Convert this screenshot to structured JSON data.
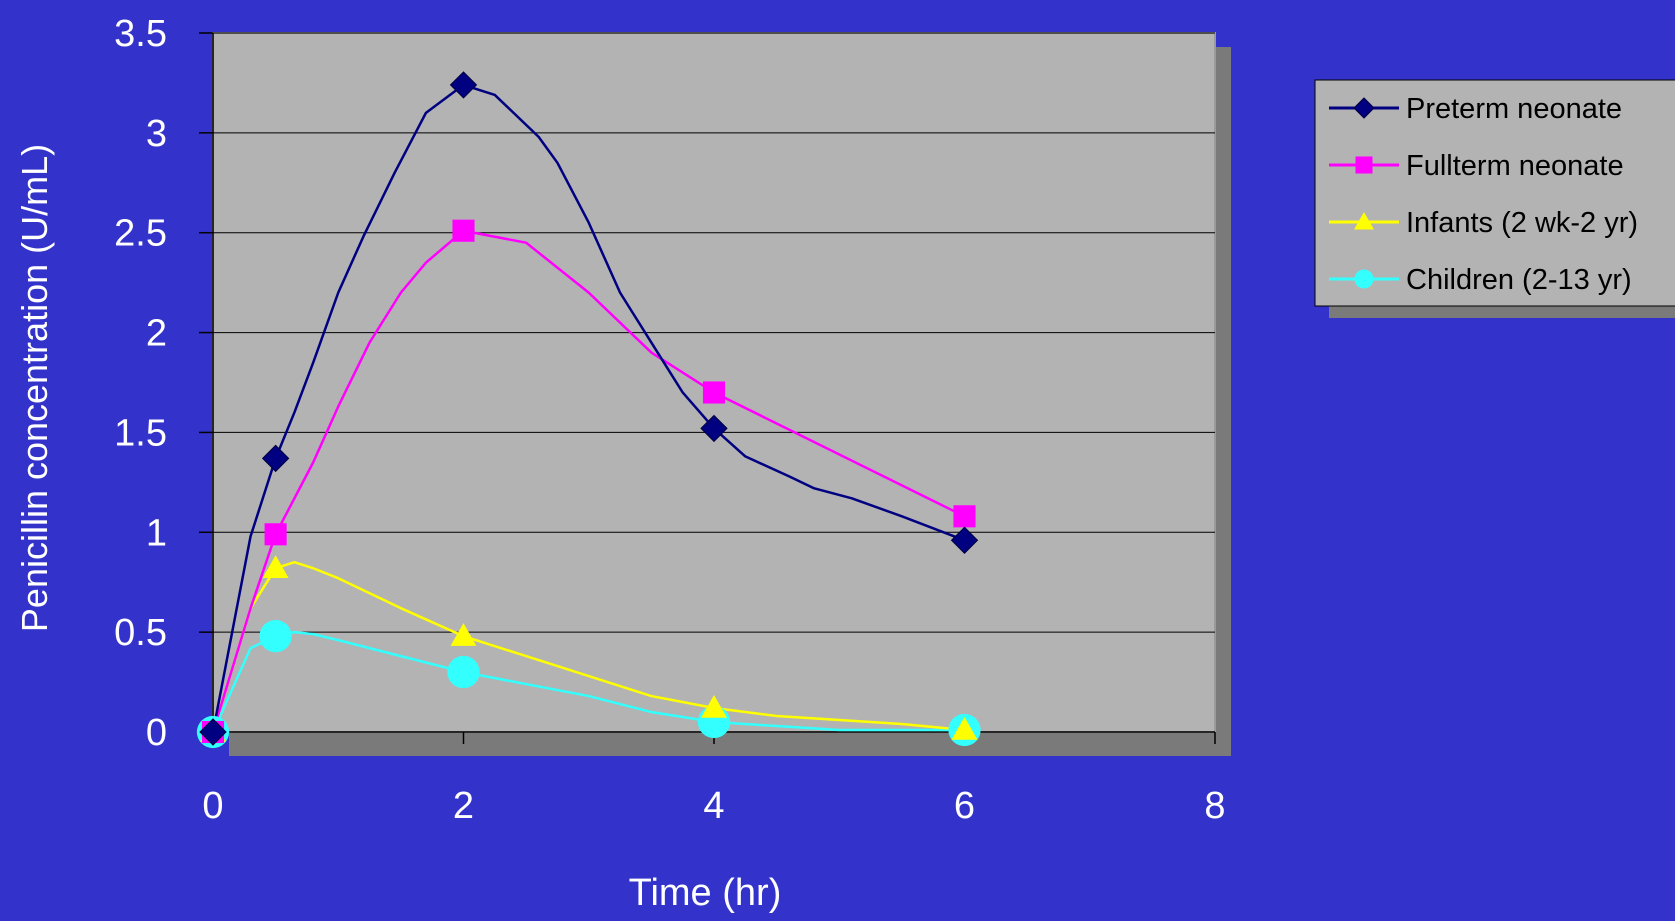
{
  "chart_data": {
    "type": "line",
    "title": "",
    "xlabel": "Time (hr)",
    "ylabel": "Penicillin concentration (U/mL)",
    "xlim": [
      0,
      8
    ],
    "ylim": [
      0,
      3.5
    ],
    "xticks": [
      "0",
      "2",
      "4",
      "6",
      "8"
    ],
    "yticks": [
      "0",
      "0.5",
      "1",
      "1.5",
      "2",
      "2.5",
      "3",
      "3.5"
    ],
    "grid": "horizontal",
    "legend_position": "right",
    "plot_background": "#b3b3b3",
    "page_background": "#3333cc",
    "series": [
      {
        "name": "Preterm neonate",
        "color": "#000080",
        "marker": "diamond",
        "markers_x": [
          0,
          0.5,
          2,
          4,
          6
        ],
        "markers_y": [
          0,
          1.37,
          3.24,
          1.52,
          0.96
        ],
        "curve_x": [
          0,
          0.3,
          0.5,
          0.65,
          0.8,
          1.0,
          1.2,
          1.45,
          1.7,
          2.0,
          2.25,
          2.4,
          2.6,
          2.75,
          3.0,
          3.25,
          3.5,
          3.75,
          4.0,
          4.25,
          4.6,
          4.8,
          5.1,
          5.5,
          6.0
        ],
        "curve_y": [
          0,
          0.98,
          1.37,
          1.6,
          1.85,
          2.2,
          2.48,
          2.8,
          3.1,
          3.24,
          3.19,
          3.1,
          2.98,
          2.85,
          2.55,
          2.2,
          1.95,
          1.7,
          1.52,
          1.38,
          1.28,
          1.22,
          1.17,
          1.08,
          0.96
        ]
      },
      {
        "name": "Fullterm neonate",
        "color": "#ff00ff",
        "marker": "square",
        "markers_x": [
          0,
          0.5,
          2,
          4,
          6
        ],
        "markers_y": [
          0,
          0.99,
          2.51,
          1.7,
          1.08
        ],
        "curve_x": [
          0,
          0.3,
          0.5,
          0.8,
          1.0,
          1.25,
          1.5,
          1.7,
          2.0,
          2.5,
          3.0,
          3.5,
          4.0,
          6.0
        ],
        "curve_y": [
          0,
          0.62,
          0.99,
          1.35,
          1.63,
          1.95,
          2.2,
          2.35,
          2.51,
          2.45,
          2.2,
          1.9,
          1.7,
          1.08
        ]
      },
      {
        "name": "Infants (2 wk-2 yr)",
        "color": "#ffff00",
        "marker": "triangle",
        "markers_x": [
          0,
          0.5,
          2,
          4,
          6
        ],
        "markers_y": [
          0,
          0.82,
          0.48,
          0.12,
          0.01
        ],
        "curve_x": [
          0,
          0.3,
          0.5,
          0.65,
          0.8,
          1.0,
          1.5,
          2.0,
          2.5,
          3.0,
          3.5,
          4.0,
          4.5,
          5.0,
          5.5,
          6.0
        ],
        "curve_y": [
          0,
          0.62,
          0.82,
          0.85,
          0.82,
          0.77,
          0.62,
          0.48,
          0.38,
          0.28,
          0.18,
          0.12,
          0.08,
          0.06,
          0.04,
          0.01
        ]
      },
      {
        "name": "Children (2-13 yr)",
        "color": "#33ffff",
        "marker": "circle",
        "markers_x": [
          0,
          0.5,
          2,
          4,
          6
        ],
        "markers_y": [
          0,
          0.48,
          0.3,
          0.05,
          0.01
        ],
        "curve_x": [
          0,
          0.3,
          0.5,
          0.65,
          0.8,
          1.0,
          1.5,
          2.0,
          2.5,
          3.0,
          3.5,
          4.0,
          4.5,
          5.0,
          5.5,
          6.0
        ],
        "curve_y": [
          0,
          0.42,
          0.48,
          0.5,
          0.49,
          0.46,
          0.38,
          0.3,
          0.24,
          0.18,
          0.1,
          0.05,
          0.03,
          0.01,
          0.01,
          0.01
        ]
      }
    ]
  }
}
